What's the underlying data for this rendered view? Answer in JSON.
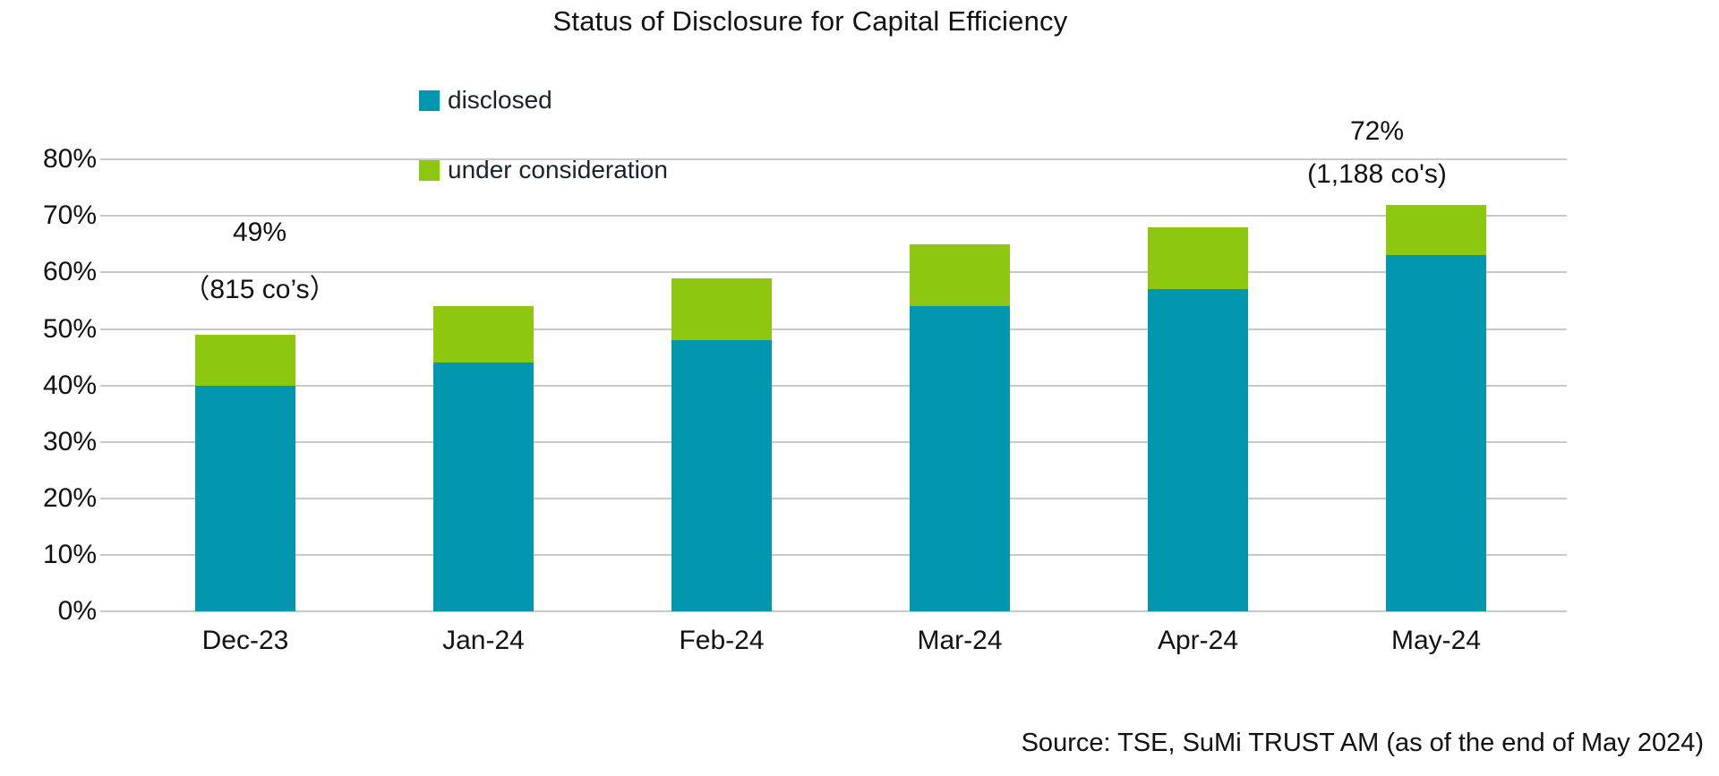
{
  "title": "Status of Disclosure for Capital Efficiency",
  "legend": {
    "disclosed_label": "disclosed",
    "under_consideration_label": "under consideration"
  },
  "annotations": {
    "dec": {
      "line1": "49%",
      "line2": "（815 co’s）"
    },
    "may": {
      "line1": "72%",
      "line2": "(1,188 co's)"
    }
  },
  "source": "Source: TSE, SuMi TRUST AM (as of the end of May 2024)",
  "colors": {
    "disclosed": "#0297AE",
    "under_consideration": "#8DC710",
    "gridline": "#C9C9C9",
    "text": "#111111"
  },
  "chart_data": {
    "type": "bar",
    "stacked": true,
    "title": "Status of Disclosure for Capital Efficiency",
    "categories": [
      "Dec-23",
      "Jan-24",
      "Feb-24",
      "Mar-24",
      "Apr-24",
      "May-24"
    ],
    "series": [
      {
        "name": "disclosed",
        "color": "#0297AE",
        "values": [
          40,
          44,
          48,
          54,
          57,
          63
        ]
      },
      {
        "name": "under consideration",
        "color": "#8DC710",
        "values": [
          9,
          10,
          11,
          11,
          11,
          9
        ]
      }
    ],
    "totals": [
      49,
      54,
      59,
      65,
      68,
      72
    ],
    "data_labels": [
      {
        "category": "Dec-23",
        "text": "49% （815 co’s）"
      },
      {
        "category": "May-24",
        "text": "72% (1,188 co's)"
      }
    ],
    "xlabel": "",
    "ylabel": "",
    "ylim": [
      0,
      84
    ],
    "yticks": [
      0,
      10,
      20,
      30,
      40,
      50,
      60,
      70,
      80
    ],
    "ytick_format": "percent",
    "grid": true,
    "legend_position": "top-left-inside"
  }
}
